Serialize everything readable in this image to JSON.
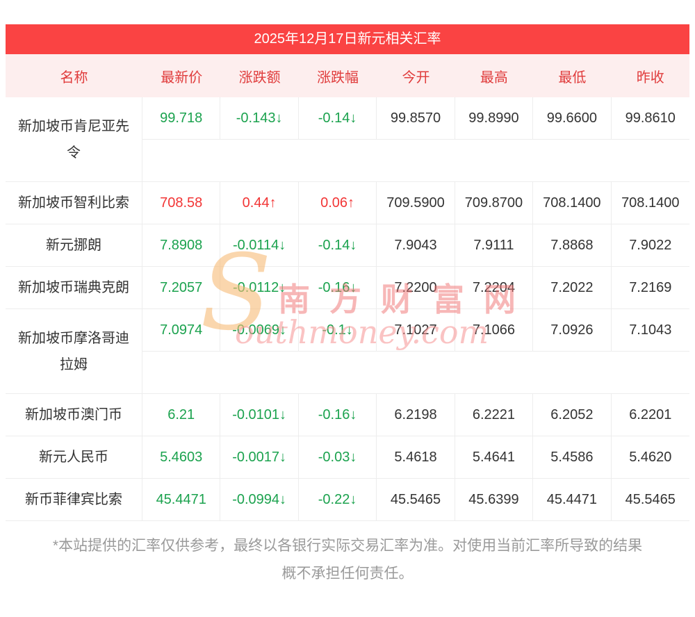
{
  "page": {
    "title": "2025年12月17日新元相关汇率"
  },
  "table": {
    "headers": [
      "名称",
      "最新价",
      "涨跌额",
      "涨跌幅",
      "今开",
      "最高",
      "最低",
      "昨收"
    ],
    "rows": [
      {
        "name": "新加坡币肯尼亚先令",
        "latest": "99.718",
        "change": "-0.143↓",
        "change_pct": "-0.14↓",
        "open": "99.8570",
        "high": "99.8990",
        "low": "99.6600",
        "prev_close": "99.8610",
        "trend": "down"
      },
      {
        "name": "新加坡币智利比索",
        "latest": "708.58",
        "change": "0.44↑",
        "change_pct": "0.06↑",
        "open": "709.5900",
        "high": "709.8700",
        "low": "708.1400",
        "prev_close": "708.1400",
        "trend": "up"
      },
      {
        "name": "新元挪朗",
        "latest": "7.8908",
        "change": "-0.0114↓",
        "change_pct": "-0.14↓",
        "open": "7.9043",
        "high": "7.9111",
        "low": "7.8868",
        "prev_close": "7.9022",
        "trend": "down"
      },
      {
        "name": "新加坡币瑞典克朗",
        "latest": "7.2057",
        "change": "-0.0112↓",
        "change_pct": "-0.16↓",
        "open": "7.2200",
        "high": "7.2204",
        "low": "7.2022",
        "prev_close": "7.2169",
        "trend": "down"
      },
      {
        "name": "新加坡币摩洛哥迪拉姆",
        "latest": "7.0974",
        "change": "-0.0069↓",
        "change_pct": "-0.1↓",
        "open": "7.1027",
        "high": "7.1066",
        "low": "7.0926",
        "prev_close": "7.1043",
        "trend": "down"
      },
      {
        "name": "新加坡币澳门币",
        "latest": "6.21",
        "change": "-0.0101↓",
        "change_pct": "-0.16↓",
        "open": "6.2198",
        "high": "6.2221",
        "low": "6.2052",
        "prev_close": "6.2201",
        "trend": "down"
      },
      {
        "name": "新元人民币",
        "latest": "5.4603",
        "change": "-0.0017↓",
        "change_pct": "-0.03↓",
        "open": "5.4618",
        "high": "5.4641",
        "low": "5.4586",
        "prev_close": "5.4620",
        "trend": "down"
      },
      {
        "name": "新币菲律宾比索",
        "latest": "45.4471",
        "change": "-0.0994↓",
        "change_pct": "-0.22↓",
        "open": "45.5465",
        "high": "45.6399",
        "low": "45.4471",
        "prev_close": "45.5465",
        "trend": "down"
      }
    ]
  },
  "watermark": {
    "initial": "S",
    "site_name_cn": "南方财富网",
    "site_name_en": "outhmoney.com"
  },
  "footer": {
    "line1": "*本站提供的汇率仅供参考，最终以各银行实际交易汇率为准。对使用当前汇率所导致的结果",
    "line2": "概不承担任何责任。"
  },
  "colors": {
    "title_bar": "#fa4343",
    "header_bg": "#fdeeee",
    "header_text": "#e03c3c",
    "up": "#f23535",
    "down": "#1ba24e"
  }
}
